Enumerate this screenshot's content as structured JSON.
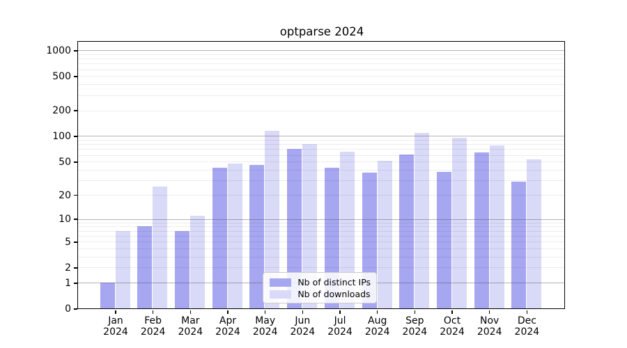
{
  "title": "optparse 2024",
  "legend": {
    "entries": [
      "Nb of distinct IPs",
      "Nb of downloads"
    ],
    "position": "lower center"
  },
  "colors": {
    "distinct_ips_bar": "#a6a6f1",
    "downloads_bar": "#d9d9f8",
    "major_grid": "#bdbdbd",
    "minor_grid": "#ececec",
    "axis": "#000000"
  },
  "chart_data": {
    "type": "bar",
    "title": "optparse 2024",
    "categories": [
      "Jan 2024",
      "Feb 2024",
      "Mar 2024",
      "Apr 2024",
      "May 2024",
      "Jun 2024",
      "Jul 2024",
      "Aug 2024",
      "Sep 2024",
      "Oct 2024",
      "Nov 2024",
      "Dec 2024"
    ],
    "series": [
      {
        "name": "Nb of distinct IPs",
        "color": "#a6a6f1",
        "values": [
          1,
          8,
          7,
          42,
          46,
          70,
          42,
          37,
          61,
          38,
          64,
          29
        ]
      },
      {
        "name": "Nb of downloads",
        "color": "#d9d9f8",
        "values": [
          7,
          25,
          11,
          47,
          115,
          80,
          66,
          51,
          108,
          95,
          78,
          53
        ]
      }
    ],
    "xlabel": "",
    "ylabel": "",
    "y_scale": "log1p",
    "y_ticks": [
      0,
      1,
      2,
      5,
      10,
      20,
      50,
      100,
      200,
      500,
      1000
    ],
    "y_major_gridlines": [
      1,
      10,
      100,
      1000
    ],
    "ylim": [
      0,
      1260
    ],
    "grid": "horizontal major+minor",
    "legend_position": "lower center"
  }
}
